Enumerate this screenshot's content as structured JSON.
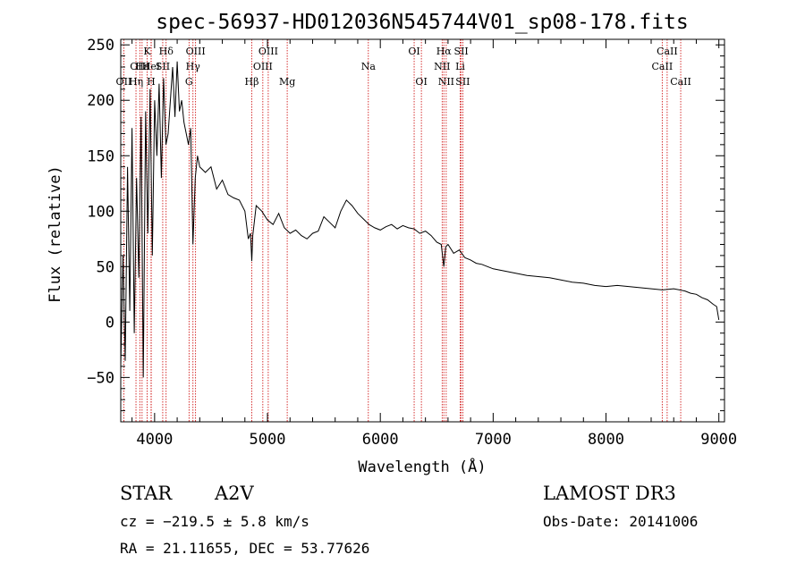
{
  "chart_data": {
    "type": "line",
    "title": "spec-56937-HD012036N545744V01_sp08-178.fits",
    "xlabel": "Wavelength (Å)",
    "ylabel": "Flux (relative)",
    "xlim": [
      3700,
      9050
    ],
    "ylim": [
      -90,
      255
    ],
    "xticks": [
      4000,
      5000,
      6000,
      7000,
      8000,
      9000
    ],
    "yticks": [
      -50,
      0,
      50,
      100,
      150,
      200,
      250
    ],
    "grid": false,
    "series": [
      {
        "x": [
          3700,
          3720,
          3740,
          3760,
          3780,
          3800,
          3820,
          3840,
          3860,
          3880,
          3900,
          3920,
          3940,
          3960,
          3980,
          4000,
          4020,
          4040,
          4060,
          4080,
          4100,
          4120,
          4140,
          4160,
          4180,
          4200,
          4220,
          4240,
          4260,
          4280,
          4300,
          4320,
          4340,
          4360,
          4380,
          4400,
          4450,
          4500,
          4550,
          4600,
          4650,
          4700,
          4750,
          4800,
          4830,
          4850,
          4861,
          4870,
          4900,
          4950,
          5000,
          5050,
          5100,
          5150,
          5200,
          5250,
          5300,
          5350,
          5400,
          5450,
          5500,
          5550,
          5600,
          5650,
          5700,
          5750,
          5800,
          5850,
          5900,
          5950,
          6000,
          6050,
          6100,
          6150,
          6200,
          6250,
          6300,
          6350,
          6400,
          6450,
          6500,
          6540,
          6563,
          6580,
          6600,
          6650,
          6700,
          6750,
          6800,
          6850,
          6900,
          6950,
          7000,
          7100,
          7200,
          7300,
          7400,
          7500,
          7600,
          7700,
          7800,
          7900,
          8000,
          8100,
          8200,
          8300,
          8400,
          8500,
          8600,
          8700,
          8750,
          8800,
          8850,
          8900,
          8950,
          8980,
          9000
        ],
        "y": [
          -40,
          60,
          -35,
          140,
          10,
          175,
          -10,
          130,
          40,
          185,
          -50,
          190,
          80,
          210,
          60,
          200,
          150,
          215,
          130,
          220,
          160,
          170,
          200,
          230,
          185,
          235,
          190,
          200,
          180,
          170,
          160,
          175,
          70,
          130,
          150,
          140,
          135,
          140,
          120,
          128,
          115,
          112,
          110,
          100,
          75,
          80,
          55,
          78,
          105,
          100,
          92,
          88,
          98,
          85,
          80,
          83,
          78,
          75,
          80,
          82,
          95,
          90,
          85,
          100,
          110,
          105,
          98,
          93,
          88,
          85,
          83,
          86,
          88,
          84,
          87,
          85,
          84,
          80,
          82,
          78,
          72,
          70,
          50,
          68,
          70,
          62,
          65,
          58,
          56,
          53,
          52,
          50,
          48,
          46,
          44,
          42,
          41,
          40,
          38,
          36,
          35,
          33,
          32,
          33,
          32,
          31,
          30,
          29,
          30,
          28,
          26,
          25,
          22,
          20,
          16,
          14,
          2
        ]
      }
    ],
    "spectral_lines": [
      {
        "label": "OII",
        "wavelength": 3727,
        "row": 3
      },
      {
        "label": "Hη",
        "wavelength": 3835,
        "row": 3
      },
      {
        "label": "OIII",
        "wavelength": 3869,
        "row": 2
      },
      {
        "label": "Hε",
        "wavelength": 3889,
        "row": 2
      },
      {
        "label": "H",
        "wavelength": 3969,
        "row": 3
      },
      {
        "label": "K",
        "wavelength": 3934,
        "row": 1
      },
      {
        "label": "HeI",
        "wavelength": 3970,
        "row": 2
      },
      {
        "label": "SII",
        "wavelength": 4072,
        "row": 2
      },
      {
        "label": "Hδ",
        "wavelength": 4102,
        "row": 1
      },
      {
        "label": "Hγ",
        "wavelength": 4340,
        "row": 2
      },
      {
        "label": "OIII",
        "wavelength": 4363,
        "row": 1
      },
      {
        "label": "G",
        "wavelength": 4305,
        "row": 3
      },
      {
        "label": "Hβ",
        "wavelength": 4861,
        "row": 3
      },
      {
        "label": "OIII",
        "wavelength": 4959,
        "row": 2
      },
      {
        "label": "OIII",
        "wavelength": 5007,
        "row": 1
      },
      {
        "label": "Mg",
        "wavelength": 5175,
        "row": 3
      },
      {
        "label": "Na",
        "wavelength": 5894,
        "row": 2
      },
      {
        "label": "OI",
        "wavelength": 6300,
        "row": 1
      },
      {
        "label": "OI",
        "wavelength": 6364,
        "row": 3
      },
      {
        "label": "Hα",
        "wavelength": 6563,
        "row": 1
      },
      {
        "label": "NII",
        "wavelength": 6548,
        "row": 2
      },
      {
        "label": "NII",
        "wavelength": 6584,
        "row": 3
      },
      {
        "label": "SII",
        "wavelength": 6717,
        "row": 1
      },
      {
        "label": "Li",
        "wavelength": 6708,
        "row": 2
      },
      {
        "label": "SII",
        "wavelength": 6731,
        "row": 3
      },
      {
        "label": "CaII",
        "wavelength": 8498,
        "row": 2
      },
      {
        "label": "CaII",
        "wavelength": 8542,
        "row": 1
      },
      {
        "label": "CaII",
        "wavelength": 8662,
        "row": 3
      }
    ]
  },
  "info": {
    "object_class": "STAR",
    "subclass": "A2V",
    "survey": "LAMOST DR3",
    "velocity": "cz = −219.5 ± 5.8 km/s",
    "obs_date": "Obs-Date: 20141006",
    "coords": "RA =  21.11655, DEC =  53.77626"
  },
  "colors": {
    "spectrum": "#000000",
    "line_marker": "#cc0000"
  }
}
